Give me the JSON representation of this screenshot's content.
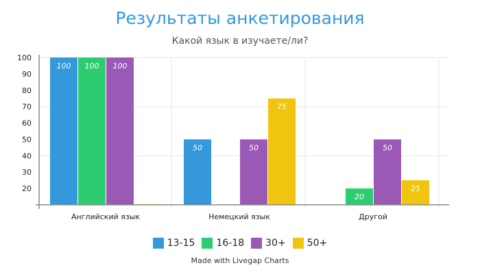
{
  "chart_data": {
    "type": "bar",
    "title": "Результаты анкетирования",
    "subtitle": "Какой язык в изучаете/ли?",
    "categories": [
      "Английский язык",
      "Немецкий язык",
      "Другой"
    ],
    "series": [
      {
        "name": "13-15",
        "color": "#3498db",
        "values": [
          100,
          50,
          null
        ]
      },
      {
        "name": "16-18",
        "color": "#2ecc71",
        "values": [
          100,
          null,
          20
        ]
      },
      {
        "name": "30+",
        "color": "#9b59b6",
        "values": [
          100,
          50,
          50
        ]
      },
      {
        "name": "50+",
        "color": "#f1c40f",
        "values": [
          null,
          75,
          25
        ]
      }
    ],
    "yticks": [
      20,
      30,
      40,
      50,
      60,
      70,
      80,
      90,
      100
    ],
    "ylim": [
      10,
      100
    ],
    "grid": true,
    "legend": "bottom"
  },
  "credit": "Made with Livegap Charts"
}
